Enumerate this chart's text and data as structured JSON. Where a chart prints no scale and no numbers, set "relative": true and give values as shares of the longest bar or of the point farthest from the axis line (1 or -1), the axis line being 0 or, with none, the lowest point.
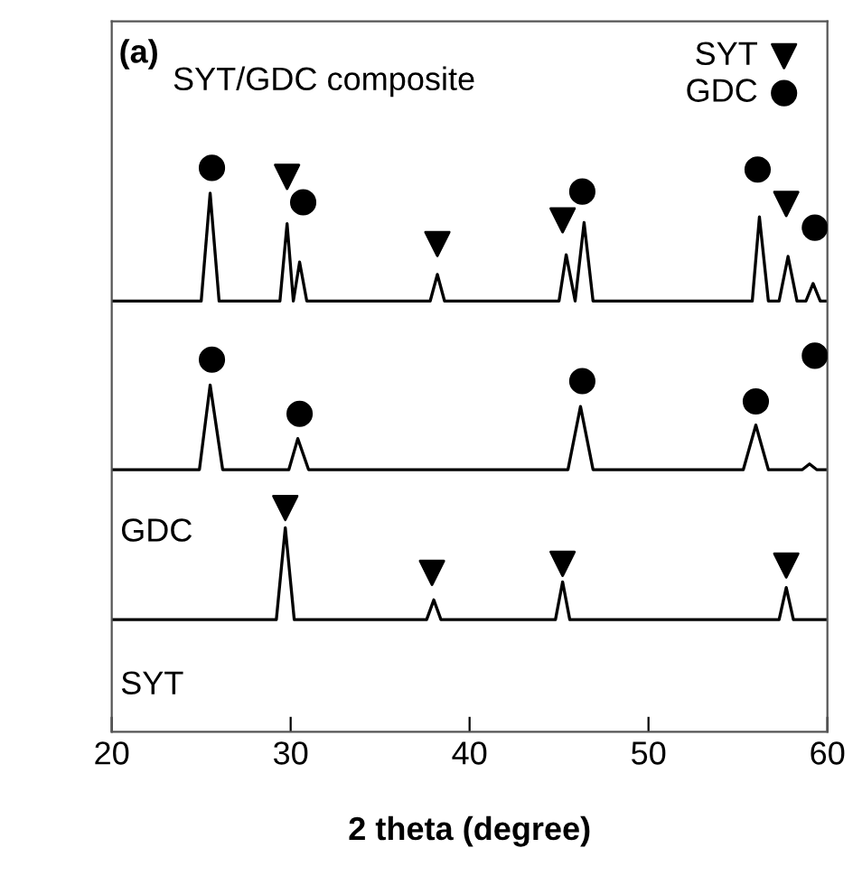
{
  "chart_data": {
    "type": "line",
    "relative": true,
    "xlabel": "2 theta (degree)",
    "xlim": [
      20,
      60
    ],
    "xticks": [
      20,
      30,
      40,
      50,
      60
    ],
    "grid": false,
    "legend": "top right",
    "annotations": [
      "(a)",
      "SYT/GDC composite",
      "GDC",
      "SYT"
    ],
    "series": [
      {
        "color": "#000000",
        "marker": "none",
        "x": [
          20,
          25.0,
          25.5,
          26.0,
          29.4,
          29.8,
          30.15,
          30.5,
          30.9,
          37.8,
          38.2,
          38.6,
          45.0,
          45.4,
          45.9,
          46.4,
          46.9,
          55.8,
          56.2,
          56.7,
          57.3,
          57.8,
          58.3,
          58.8,
          59.2,
          59.6,
          60
        ],
        "values": [
          0.764,
          0.764,
          0.955,
          0.764,
          0.764,
          0.901,
          0.764,
          0.833,
          0.764,
          0.764,
          0.811,
          0.764,
          0.764,
          0.846,
          0.764,
          0.903,
          0.764,
          0.764,
          0.913,
          0.764,
          0.764,
          0.843,
          0.764,
          0.764,
          0.795,
          0.764,
          0.764
        ]
      },
      {
        "color": "#000000",
        "marker": "none",
        "x": [
          20,
          24.9,
          25.5,
          26.2,
          29.9,
          30.4,
          31.0,
          45.5,
          46.2,
          46.9,
          55.3,
          56.0,
          56.7,
          58.6,
          59.0,
          59.4,
          60
        ],
        "values": [
          0.465,
          0.465,
          0.615,
          0.465,
          0.465,
          0.52,
          0.465,
          0.465,
          0.577,
          0.465,
          0.465,
          0.544,
          0.465,
          0.465,
          0.475,
          0.465,
          0.465
        ]
      },
      {
        "color": "#000000",
        "marker": "none",
        "x": [
          20,
          29.2,
          29.7,
          30.2,
          37.6,
          38.0,
          38.4,
          44.8,
          45.2,
          45.6,
          57.3,
          57.7,
          58.1,
          60
        ],
        "values": [
          0.199,
          0.199,
          0.362,
          0.199,
          0.199,
          0.234,
          0.199,
          0.199,
          0.266,
          0.199,
          0.199,
          0.256,
          0.199,
          0.199
        ]
      },
      {
        "type": "scatter",
        "name": "SYT",
        "color": "#000000",
        "marker": "triangle",
        "x": [
          29.8,
          38.2,
          45.2,
          57.7,
          29.7,
          37.9,
          45.2,
          57.7
        ],
        "values": [
          0.984,
          0.865,
          0.907,
          0.936,
          0.397,
          0.282,
          0.298,
          0.295
        ]
      },
      {
        "type": "scatter",
        "name": "GDC",
        "color": "#000000",
        "marker": "circle",
        "x": [
          25.6,
          30.7,
          46.3,
          56.1,
          59.3,
          25.6,
          30.5,
          46.3,
          56.0,
          59.3
        ],
        "values": [
          1.0,
          0.939,
          0.958,
          0.997,
          0.894,
          0.66,
          0.564,
          0.622,
          0.586,
          0.667
        ]
      }
    ]
  }
}
